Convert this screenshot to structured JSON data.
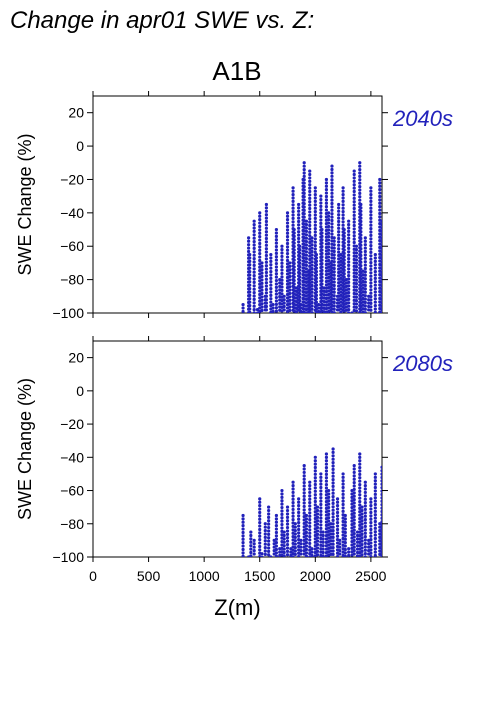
{
  "figure": {
    "title": "Change in apr01 SWE vs. Z:",
    "scenario": "A1B"
  },
  "colors": {
    "points": "#2222bb",
    "period_label": "#2222bb",
    "axis": "#000000"
  },
  "chart_data": [
    {
      "type": "scatter",
      "period": "2040s",
      "xlabel": "",
      "ylabel": "SWE Change (%)",
      "xlim": [
        0,
        2600
      ],
      "ylim": [
        -100,
        30
      ],
      "x_ticks": [
        0,
        500,
        1000,
        1500,
        2000,
        2500
      ],
      "x_tick_labels": [],
      "y_ticks": [
        20,
        0,
        -20,
        -40,
        -60,
        -80,
        -100
      ],
      "y_tick_labels": [
        "20",
        "0",
        "−20",
        "−40",
        "−60",
        "−80",
        "−100"
      ],
      "grid": false,
      "points_x_range": [
        1340,
        2600
      ],
      "points_y_range": [
        -100,
        -10
      ],
      "series": [
        {
          "x": [
            1350,
            1400,
            1410,
            1450,
            1480,
            1500,
            1520,
            1550,
            1560,
            1600,
            1620,
            1650,
            1680,
            1700,
            1720,
            1750,
            1770,
            1800,
            1810,
            1830,
            1850,
            1860,
            1870,
            1890,
            1900,
            1920,
            1940,
            1950,
            1970,
            2000,
            2010,
            2030,
            2050,
            2060,
            2080,
            2100,
            2120,
            2140,
            2150,
            2170,
            2200,
            2210,
            2230,
            2250,
            2260,
            2280,
            2300,
            2330,
            2350,
            2370,
            2400,
            2410,
            2430,
            2450,
            2480,
            2500,
            2540,
            2580,
            2600
          ],
          "y": [
            -95,
            -55,
            -65,
            -45,
            -98,
            -40,
            -70,
            -90,
            -35,
            -65,
            -95,
            -50,
            -80,
            -60,
            -90,
            -40,
            -70,
            -25,
            -50,
            -85,
            -35,
            -60,
            -95,
            -20,
            -10,
            -45,
            -75,
            -15,
            -55,
            -25,
            -65,
            -95,
            -30,
            -50,
            -85,
            -20,
            -40,
            -70,
            -12,
            -55,
            -90,
            -35,
            -65,
            -25,
            -50,
            -80,
            -45,
            -100,
            -15,
            -60,
            -10,
            -35,
            -75,
            -55,
            -90,
            -25,
            -65,
            -20,
            -45
          ]
        }
      ]
    },
    {
      "type": "scatter",
      "period": "2080s",
      "xlabel": "Z(m)",
      "ylabel": "SWE Change (%)",
      "xlim": [
        0,
        2600
      ],
      "ylim": [
        -100,
        30
      ],
      "x_ticks": [
        0,
        500,
        1000,
        1500,
        2000,
        2500
      ],
      "x_tick_labels": [
        "0",
        "500",
        "1000",
        "1500",
        "2000",
        "2500"
      ],
      "y_ticks": [
        20,
        0,
        -20,
        -40,
        -60,
        -80,
        -100
      ],
      "y_tick_labels": [
        "20",
        "0",
        "−20",
        "−40",
        "−60",
        "−80",
        "−100"
      ],
      "grid": false,
      "points_x_range": [
        1340,
        2600
      ],
      "points_y_range": [
        -100,
        -35
      ],
      "series": [
        {
          "x": [
            1350,
            1400,
            1420,
            1450,
            1500,
            1520,
            1550,
            1580,
            1600,
            1630,
            1650,
            1680,
            1700,
            1720,
            1750,
            1780,
            1800,
            1820,
            1850,
            1870,
            1900,
            1920,
            1950,
            1970,
            2000,
            2020,
            2050,
            2070,
            2100,
            2120,
            2140,
            2160,
            2200,
            2220,
            2250,
            2270,
            2300,
            2330,
            2350,
            2380,
            2400,
            2420,
            2450,
            2480,
            2500,
            2540,
            2580,
            2600
          ],
          "y": [
            -75,
            -100,
            -85,
            -90,
            -65,
            -98,
            -80,
            -70,
            -100,
            -90,
            -75,
            -95,
            -60,
            -85,
            -70,
            -95,
            -55,
            -80,
            -65,
            -90,
            -45,
            -75,
            -55,
            -95,
            -40,
            -70,
            -50,
            -85,
            -38,
            -60,
            -80,
            -35,
            -65,
            -90,
            -50,
            -75,
            -95,
            -60,
            -45,
            -85,
            -38,
            -70,
            -55,
            -90,
            -65,
            -50,
            -80,
            -46
          ]
        }
      ]
    }
  ]
}
